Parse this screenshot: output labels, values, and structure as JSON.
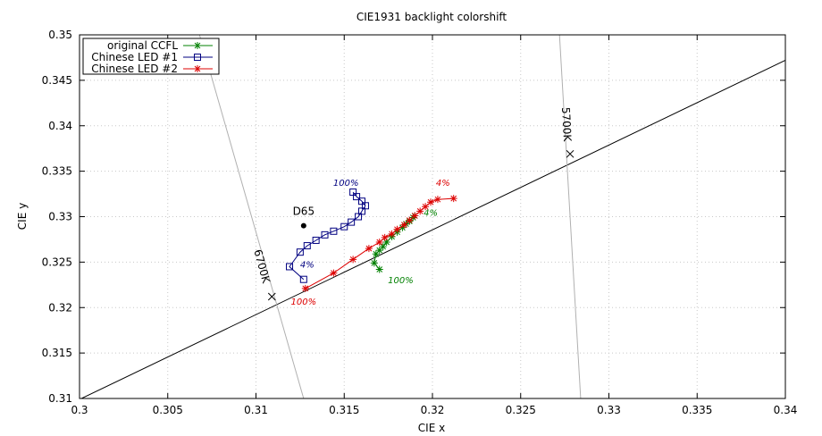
{
  "chart_data": {
    "type": "line",
    "title": "CIE1931 backlight colorshift",
    "xlabel": "CIE x",
    "ylabel": "CIE y",
    "xlim": [
      0.3,
      0.34
    ],
    "ylim": [
      0.31,
      0.35
    ],
    "x_ticks": [
      "0.3",
      "0.305",
      "0.31",
      "0.315",
      "0.32",
      "0.325",
      "0.33",
      "0.335",
      "0.34"
    ],
    "y_ticks": [
      "0.31",
      "0.315",
      "0.32",
      "0.325",
      "0.33",
      "0.335",
      "0.34",
      "0.345",
      "0.35"
    ],
    "grid": true,
    "legend_position": "top-left",
    "series": [
      {
        "name": "original CCFL",
        "color": "#008000",
        "marker": "star",
        "points": [
          [
            0.317,
            0.3242
          ],
          [
            0.3167,
            0.3249
          ],
          [
            0.3168,
            0.3259
          ],
          [
            0.317,
            0.3263
          ],
          [
            0.3172,
            0.3267
          ],
          [
            0.3174,
            0.3272
          ],
          [
            0.3177,
            0.3278
          ],
          [
            0.318,
            0.3283
          ],
          [
            0.3183,
            0.3288
          ],
          [
            0.3185,
            0.3292
          ],
          [
            0.3187,
            0.3295
          ],
          [
            0.3189,
            0.3299
          ],
          [
            0.319,
            0.3301
          ]
        ]
      },
      {
        "name": "Chinese LED #1",
        "color": "#000080",
        "marker": "square",
        "points": [
          [
            0.3155,
            0.3327
          ],
          [
            0.3157,
            0.3322
          ],
          [
            0.316,
            0.3317
          ],
          [
            0.3162,
            0.3312
          ],
          [
            0.316,
            0.3306
          ],
          [
            0.3158,
            0.33
          ],
          [
            0.3154,
            0.3294
          ],
          [
            0.315,
            0.3289
          ],
          [
            0.3144,
            0.3284
          ],
          [
            0.3139,
            0.328
          ],
          [
            0.3134,
            0.3274
          ],
          [
            0.3129,
            0.3268
          ],
          [
            0.3125,
            0.3261
          ],
          [
            0.3119,
            0.3245
          ],
          [
            0.3127,
            0.3231
          ]
        ]
      },
      {
        "name": "Chinese LED #2",
        "color": "#dd0000",
        "marker": "star",
        "points": [
          [
            0.3128,
            0.3221
          ],
          [
            0.3144,
            0.3238
          ],
          [
            0.3155,
            0.3253
          ],
          [
            0.3164,
            0.3265
          ],
          [
            0.317,
            0.3272
          ],
          [
            0.3173,
            0.3277
          ],
          [
            0.3177,
            0.3281
          ],
          [
            0.318,
            0.3286
          ],
          [
            0.3184,
            0.3291
          ],
          [
            0.3187,
            0.3296
          ],
          [
            0.319,
            0.3301
          ],
          [
            0.3193,
            0.3306
          ],
          [
            0.3196,
            0.3311
          ],
          [
            0.3199,
            0.3316
          ],
          [
            0.3203,
            0.3319
          ],
          [
            0.3212,
            0.332
          ]
        ]
      }
    ],
    "reference_lines": [
      {
        "name": "planckian-locus",
        "color": "#000000",
        "points": [
          [
            0.3,
            0.3099
          ],
          [
            0.34,
            0.3472
          ]
        ]
      },
      {
        "name": "isotherm-6700K",
        "label": "6700K",
        "color": "#b0b0b0",
        "points": [
          [
            0.3068,
            0.35
          ],
          [
            0.3127,
            0.31
          ]
        ]
      },
      {
        "name": "isotherm-5700K",
        "label": "5700K",
        "color": "#b0b0b0",
        "points": [
          [
            0.3272,
            0.35
          ],
          [
            0.3284,
            0.31
          ]
        ]
      }
    ],
    "cct_markers": [
      {
        "label": "6700K",
        "point": [
          0.3109,
          0.3212
        ]
      },
      {
        "label": "5700K",
        "point": [
          0.3278,
          0.3369
        ]
      }
    ],
    "reference_points": [
      {
        "label": "D65",
        "point": [
          0.3127,
          0.329
        ]
      }
    ],
    "annotations": [
      {
        "text": "100%",
        "point": [
          0.3151,
          0.3334
        ],
        "color": "#000080"
      },
      {
        "text": "4%",
        "point": [
          0.3129,
          0.3244
        ],
        "color": "#000080"
      },
      {
        "text": "4%",
        "point": [
          0.3206,
          0.3334
        ],
        "color": "#dd0000"
      },
      {
        "text": "100%",
        "point": [
          0.3127,
          0.3203
        ],
        "color": "#dd0000"
      },
      {
        "text": "4%",
        "point": [
          0.3199,
          0.3301
        ],
        "color": "#008000"
      },
      {
        "text": "100%",
        "point": [
          0.3182,
          0.3227
        ],
        "color": "#008000"
      }
    ]
  }
}
